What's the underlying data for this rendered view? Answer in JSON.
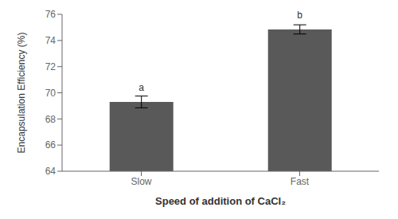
{
  "chart_data": {
    "type": "bar",
    "categories": [
      "Slow",
      "Fast"
    ],
    "values": [
      69.3,
      74.85
    ],
    "errors": [
      0.45,
      0.35
    ],
    "annotations": [
      "a",
      "b"
    ],
    "color": "#595959",
    "xlabel": "Speed of addition of CaCl₂",
    "ylabel": "Encapsulation Efficiency (%)",
    "ylim": [
      64,
      76
    ],
    "yticks": [
      64,
      66,
      68,
      70,
      72,
      74,
      76
    ],
    "grid": false
  }
}
